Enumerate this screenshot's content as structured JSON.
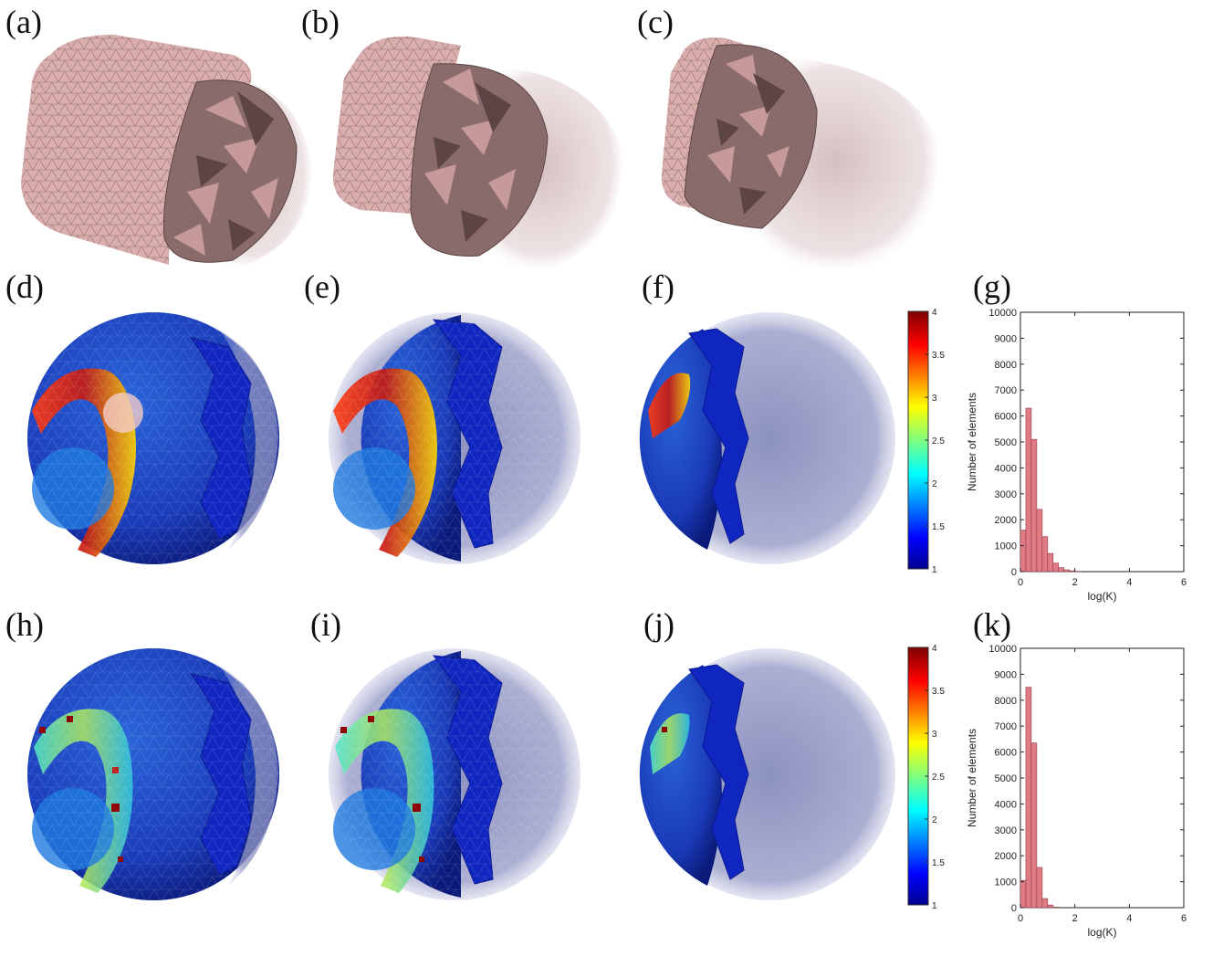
{
  "panel_labels": {
    "a": "(a)",
    "b": "(b)",
    "c": "(c)",
    "d": "(d)",
    "e": "(e)",
    "f": "(f)",
    "g": "(g)",
    "h": "(h)",
    "i": "(i)",
    "j": "(j)",
    "k": "(k)"
  },
  "colors": {
    "mesh_pink": "#d9aeac",
    "mesh_edge": "#8a6a6a",
    "hist_bar": "#e07b86",
    "hist_edge": "#8a3a44"
  },
  "colorbars": [
    {
      "ticks": [
        "4",
        "3.5",
        "3",
        "2.5",
        "2",
        "1.5",
        "1"
      ],
      "min": 1,
      "max": 4,
      "colormap": "jet"
    },
    {
      "ticks": [
        "4",
        "3.5",
        "3",
        "2.5",
        "2",
        "1.5",
        "1"
      ],
      "min": 1,
      "max": 4,
      "colormap": "jet"
    }
  ],
  "chart_data": [
    {
      "type": "bar",
      "panel": "(g)",
      "xlabel": "log(K)",
      "ylabel": "Number of elements",
      "xlim": [
        0,
        6
      ],
      "ylim": [
        0,
        10000
      ],
      "xticks": [
        "0",
        "2",
        "4",
        "6"
      ],
      "yticks": [
        "0",
        "1000",
        "2000",
        "3000",
        "4000",
        "5000",
        "6000",
        "7000",
        "8000",
        "9000",
        "10000"
      ],
      "bin_width": 0.2,
      "bin_starts": [
        0,
        0.2,
        0.4,
        0.6,
        0.8,
        1.0,
        1.2,
        1.4,
        1.6,
        1.8,
        2.0
      ],
      "values": [
        1600,
        6300,
        5100,
        2400,
        1350,
        700,
        330,
        150,
        70,
        30,
        10
      ]
    },
    {
      "type": "bar",
      "panel": "(k)",
      "xlabel": "log(K)",
      "ylabel": "Number of elements",
      "xlim": [
        0,
        6
      ],
      "ylim": [
        0,
        10000
      ],
      "xticks": [
        "0",
        "2",
        "4",
        "6"
      ],
      "yticks": [
        "0",
        "1000",
        "2000",
        "3000",
        "4000",
        "5000",
        "6000",
        "7000",
        "8000",
        "9000",
        "10000"
      ],
      "bin_width": 0.2,
      "bin_starts": [
        0,
        0.2,
        0.4,
        0.6,
        0.8,
        1.0,
        1.2
      ],
      "values": [
        1050,
        8500,
        6350,
        1550,
        350,
        100,
        20
      ]
    }
  ]
}
